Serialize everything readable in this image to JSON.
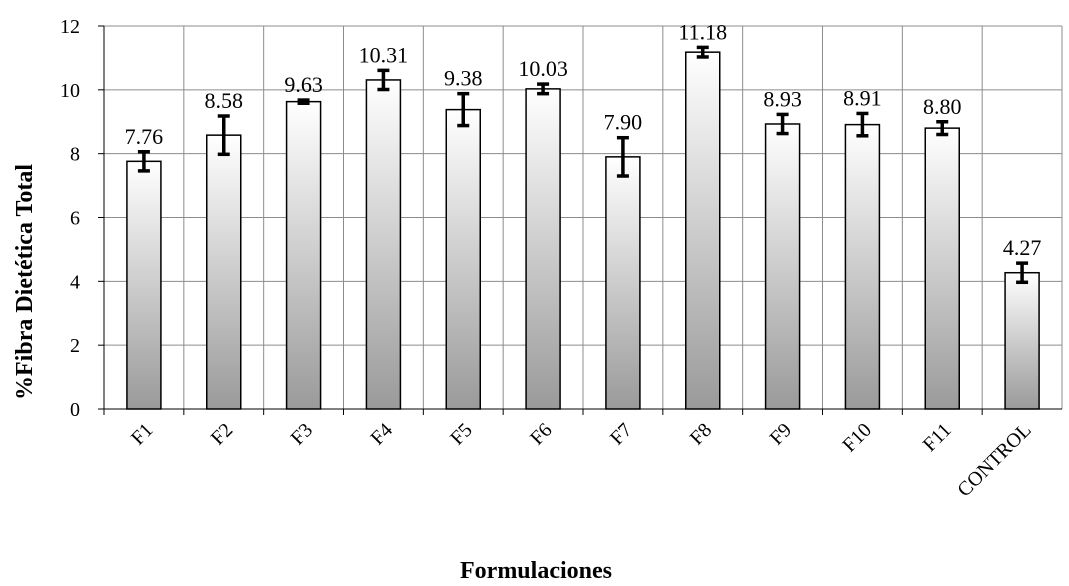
{
  "chart_data": {
    "type": "bar",
    "title": "",
    "xlabel": "Formulaciones",
    "ylabel": "%Fibra Dietética Total",
    "ylim": [
      0,
      12
    ],
    "yticks": [
      0,
      2,
      4,
      6,
      8,
      10,
      12
    ],
    "grid": true,
    "legend": "none",
    "categories": [
      "F1",
      "F2",
      "F3",
      "F4",
      "F5",
      "F6",
      "F7",
      "F8",
      "F9",
      "F10",
      "F11",
      "CONTROL"
    ],
    "values": [
      7.76,
      8.58,
      9.63,
      10.31,
      9.38,
      10.03,
      7.9,
      11.18,
      8.93,
      8.91,
      8.8,
      4.27
    ],
    "labels": [
      "7.76",
      "8.58",
      "9.63",
      "10.31",
      "9.38",
      "10.03",
      "7.90",
      "11.18",
      "8.93",
      "8.91",
      "8.80",
      "4.27"
    ],
    "error": [
      0.3,
      0.6,
      0.05,
      0.3,
      0.5,
      0.15,
      0.6,
      0.15,
      0.3,
      0.35,
      0.2,
      0.3
    ],
    "colors": {
      "bar_top": "#ffffff",
      "bar_bottom": "#9a9a9a",
      "bar_edge": "#000000",
      "grid": "#8c8c8c",
      "error_bar": "#000000"
    }
  }
}
